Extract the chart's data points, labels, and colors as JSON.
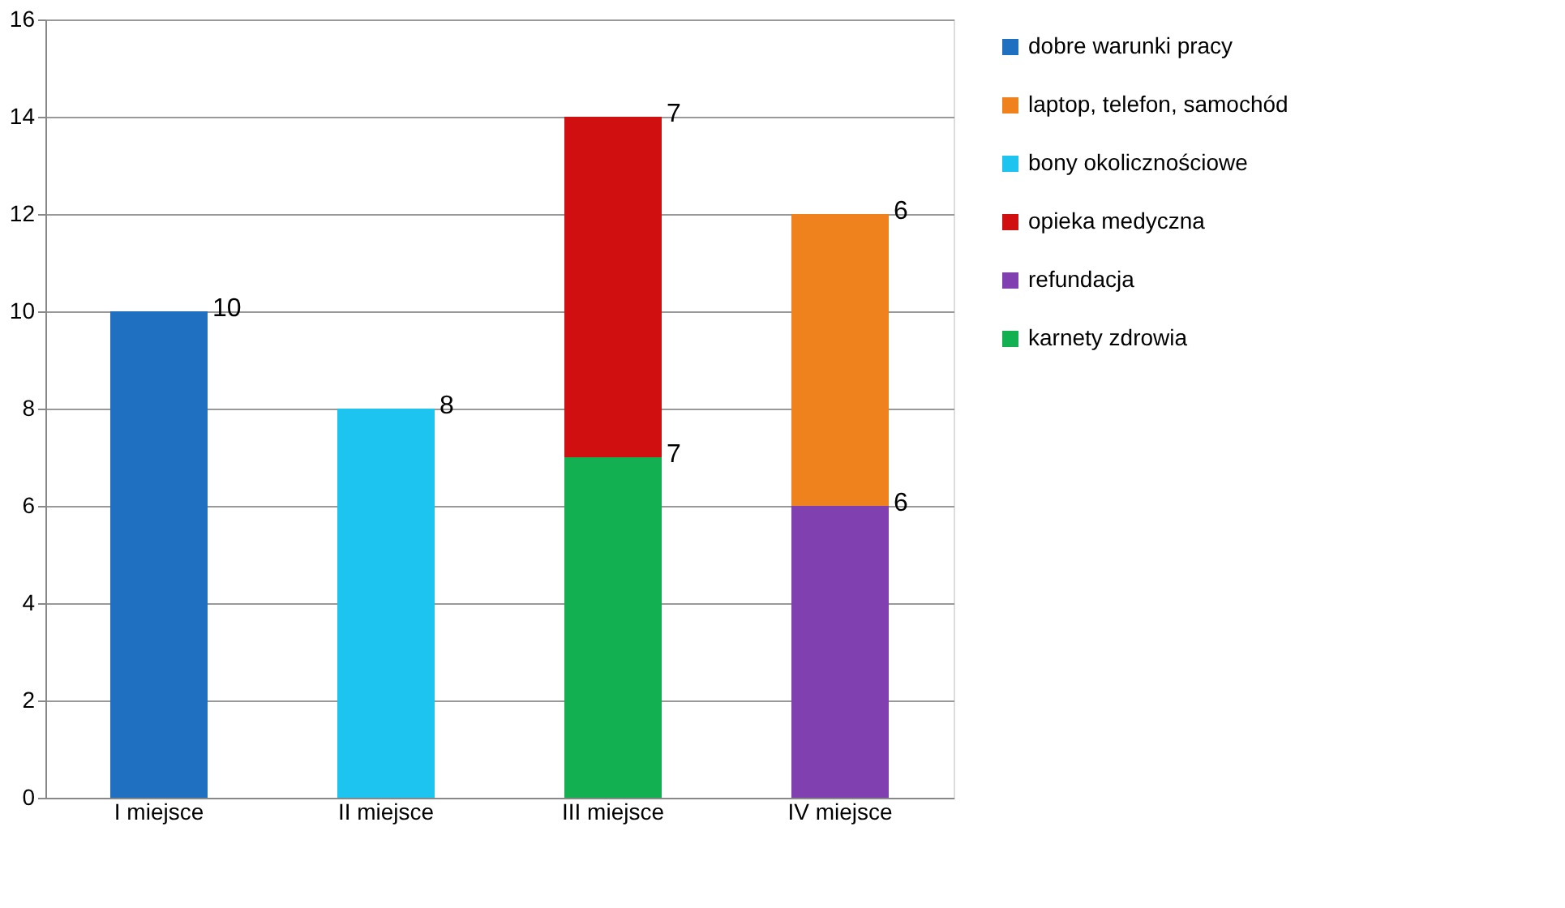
{
  "chart_data": {
    "type": "bar",
    "stacked": true,
    "categories": [
      "I miejsce",
      "II miejsce",
      "III miejsce",
      "IV miejsce"
    ],
    "series": [
      {
        "name": "karnety zdrowia",
        "color": "#12b050",
        "values": [
          null,
          null,
          7,
          null
        ]
      },
      {
        "name": "refundacja",
        "color": "#8040b0",
        "values": [
          null,
          null,
          null,
          6
        ]
      },
      {
        "name": "opieka medyczna",
        "color": "#d01010",
        "values": [
          null,
          null,
          7,
          null
        ]
      },
      {
        "name": "bony okolicznościowe",
        "color": "#1ec4f0",
        "values": [
          null,
          8,
          null,
          null
        ]
      },
      {
        "name": "laptop, telefon, samochód",
        "color": "#f0821e",
        "values": [
          null,
          null,
          null,
          6
        ]
      },
      {
        "name": "dobre warunki pracy",
        "color": "#1f70c0",
        "values": [
          10,
          null,
          null,
          null
        ]
      }
    ],
    "ylim": [
      0,
      16
    ],
    "yticks": [
      0,
      2,
      4,
      6,
      8,
      10,
      12,
      14,
      16
    ],
    "grid": "y",
    "legend": "right",
    "data_labels": true
  }
}
